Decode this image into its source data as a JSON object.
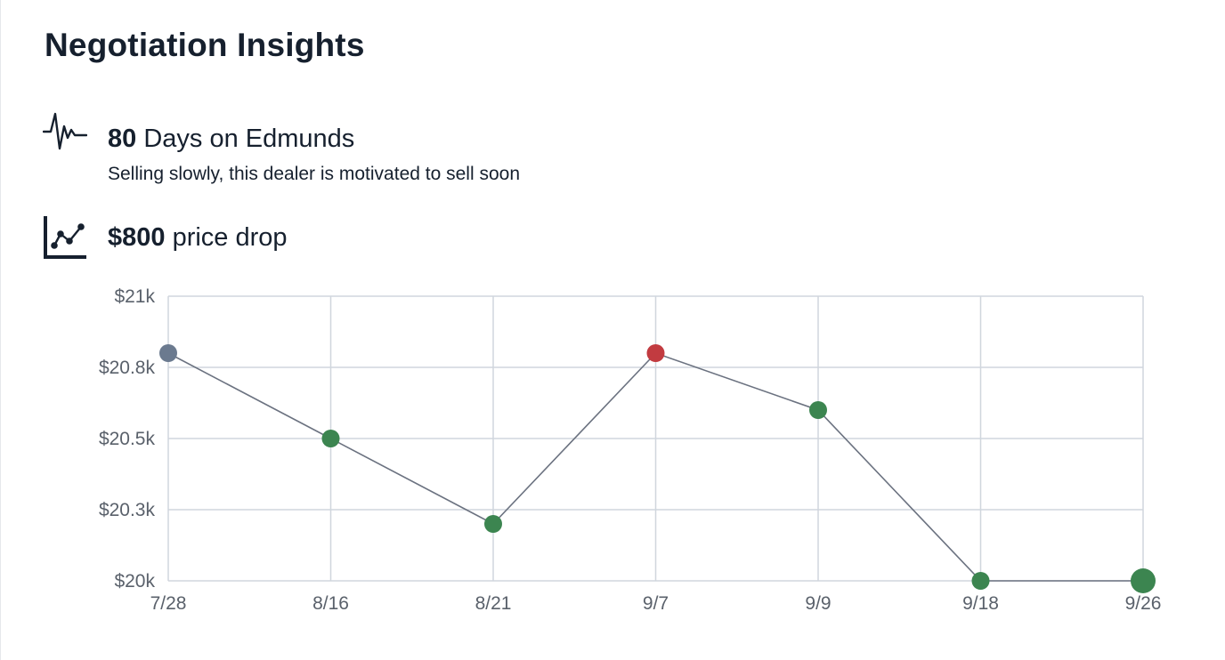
{
  "page": {
    "title": "Negotiation Insights"
  },
  "insights": {
    "days": {
      "icon": "activity-pulse-icon",
      "value": "80",
      "label": "Days on Edmunds",
      "note": "Selling slowly, this dealer is motivated to sell soon"
    },
    "price": {
      "icon": "line-chart-icon",
      "value": "$800",
      "label": "price drop"
    }
  },
  "colors": {
    "text": "#16202e",
    "grid": "#d0d6dd",
    "line": "#6b7280",
    "start_point": "#6b7a8f",
    "price_drop": "#3c8550",
    "price_increase": "#c23b40"
  },
  "chart_data": {
    "type": "line",
    "x": [
      "7/28",
      "8/16",
      "8/21",
      "9/7",
      "9/9",
      "9/18",
      "9/26"
    ],
    "y": [
      20800,
      20500,
      20200,
      20800,
      20600,
      20000,
      20000
    ],
    "point_status": [
      "start",
      "drop",
      "drop",
      "increase",
      "drop",
      "drop",
      "current"
    ],
    "ylim": [
      20000,
      21000
    ],
    "yticks": [
      20000,
      20250,
      20500,
      20750,
      21000
    ],
    "ytick_labels": [
      "$20k",
      "$20.3k",
      "$20.5k",
      "$20.8k",
      "$21k"
    ],
    "grid": true,
    "title": "",
    "xlabel": "",
    "ylabel": ""
  }
}
